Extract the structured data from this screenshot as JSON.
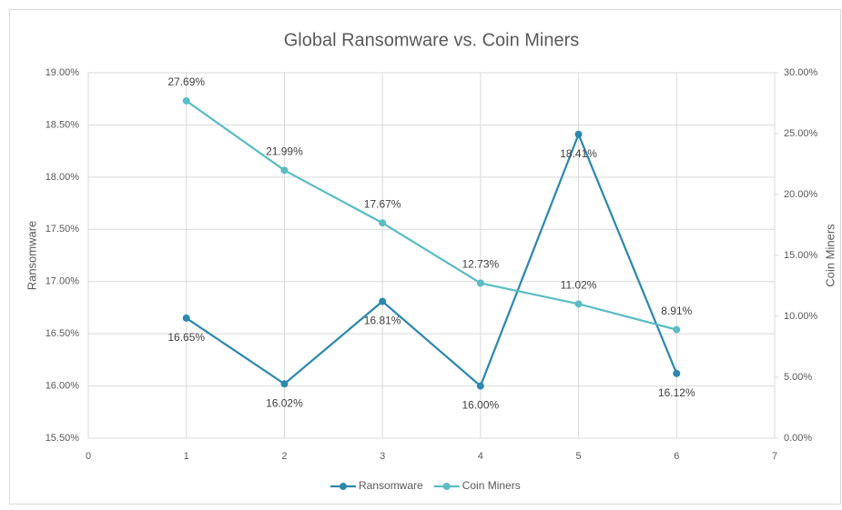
{
  "chart_data": {
    "type": "line",
    "title": "Global Ransomware vs. Coin Miners",
    "ylabel": "Ransomware",
    "y2label": "Coin Miners",
    "x": [
      1,
      2,
      3,
      4,
      5,
      6
    ],
    "xlim": [
      0,
      7
    ],
    "xticks": [
      0,
      1,
      2,
      3,
      4,
      5,
      6,
      7
    ],
    "ylim": [
      15.5,
      19
    ],
    "yticks": [
      {
        "value": 15.5,
        "label": "15.50%"
      },
      {
        "value": 16,
        "label": "16.00%"
      },
      {
        "value": 16.5,
        "label": "16.50%"
      },
      {
        "value": 17,
        "label": "17.00%"
      },
      {
        "value": 17.5,
        "label": "17.50%"
      },
      {
        "value": 18,
        "label": "18.00%"
      },
      {
        "value": 18.5,
        "label": "18.50%"
      },
      {
        "value": 19,
        "label": "19.00%"
      }
    ],
    "y2lim": [
      0,
      30
    ],
    "y2ticks": [
      {
        "value": 0,
        "label": "0.00%"
      },
      {
        "value": 5,
        "label": "5.00%"
      },
      {
        "value": 10,
        "label": "10.00%"
      },
      {
        "value": 15,
        "label": "15.00%"
      },
      {
        "value": 20,
        "label": "20.00%"
      },
      {
        "value": 25,
        "label": "25.00%"
      },
      {
        "value": 30,
        "label": "30.00%"
      }
    ],
    "grid": true,
    "legend": "bottom",
    "series": [
      {
        "name": "Ransomware",
        "color": "#2e88ad",
        "values": [
          16.65,
          16.02,
          16.81,
          16.0,
          18.41,
          16.12
        ],
        "value_labels": [
          "16.65%",
          "16.02%",
          "16.81%",
          "16.00%",
          "18.41%",
          "16.12%"
        ]
      },
      {
        "name": "Coin Miners",
        "color": "#5bbcc4",
        "axis": "y2",
        "values": [
          27.69,
          21.99,
          17.67,
          12.73,
          11.02,
          8.91
        ],
        "value_labels": [
          "27.69%",
          "21.99%",
          "17.67%",
          "12.73%",
          "11.02%",
          "8.91%"
        ]
      }
    ]
  }
}
